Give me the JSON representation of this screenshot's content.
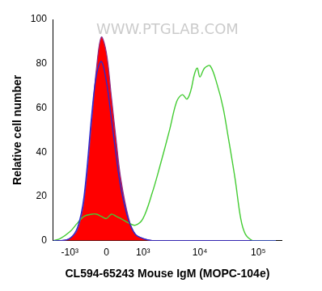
{
  "chart_data": {
    "type": "line",
    "xlabel": "CL594-65243 Mouse IgM (MOPC-104e)",
    "ylabel": "Relative cell number",
    "annotations": [
      "WWW.PTGLAB.COM"
    ],
    "x": [
      -2000,
      -1500,
      -1000,
      -700,
      -500,
      -300,
      -200,
      -100,
      0,
      100,
      200,
      300,
      500,
      700,
      1000,
      1500,
      2000,
      3000,
      4000,
      5000,
      6000,
      7000,
      8000,
      9000,
      10000,
      12000,
      15000,
      20000,
      25000,
      30000,
      40000,
      50000,
      60000,
      80000,
      100000,
      200000
    ],
    "series": [
      {
        "type": "area",
        "color": "#ff0000",
        "values": [
          0,
          0,
          1,
          5,
          18,
          55,
          78,
          92,
          85,
          65,
          45,
          28,
          10,
          3,
          1,
          0,
          0,
          0,
          0,
          0,
          0,
          0,
          0,
          0,
          0,
          0,
          0,
          0,
          0,
          0,
          0,
          0,
          0,
          0,
          0,
          0
        ]
      },
      {
        "type": "line",
        "color": "#2a2ad0",
        "values": [
          0,
          0,
          1,
          6,
          20,
          58,
          75,
          81,
          72,
          55,
          38,
          24,
          9,
          3,
          1,
          0,
          0,
          0,
          0,
          0,
          0,
          0,
          0,
          0,
          0,
          0,
          0,
          0,
          0,
          0,
          0,
          0,
          0,
          0,
          0,
          0
        ]
      },
      {
        "type": "line",
        "color": "#44cc33",
        "values": [
          0,
          1,
          4,
          8,
          11,
          12,
          12,
          11,
          10,
          12,
          11,
          10,
          8,
          7,
          10,
          22,
          33,
          50,
          63,
          66,
          64,
          68,
          75,
          78,
          74,
          78,
          79,
          70,
          60,
          48,
          28,
          10,
          3,
          0,
          0,
          0
        ]
      }
    ],
    "xlim": [
      -2000,
      250000
    ],
    "xticks": [
      {
        "value": -1000,
        "label": "-10³"
      },
      0,
      {
        "value": 1000,
        "label": "10³"
      },
      {
        "value": 10000,
        "label": "10⁴"
      },
      {
        "value": 100000,
        "label": "10⁵"
      }
    ],
    "ylim": [
      0,
      100
    ],
    "yticks": [
      0,
      20,
      40,
      60,
      80,
      100
    ],
    "grid": false
  }
}
